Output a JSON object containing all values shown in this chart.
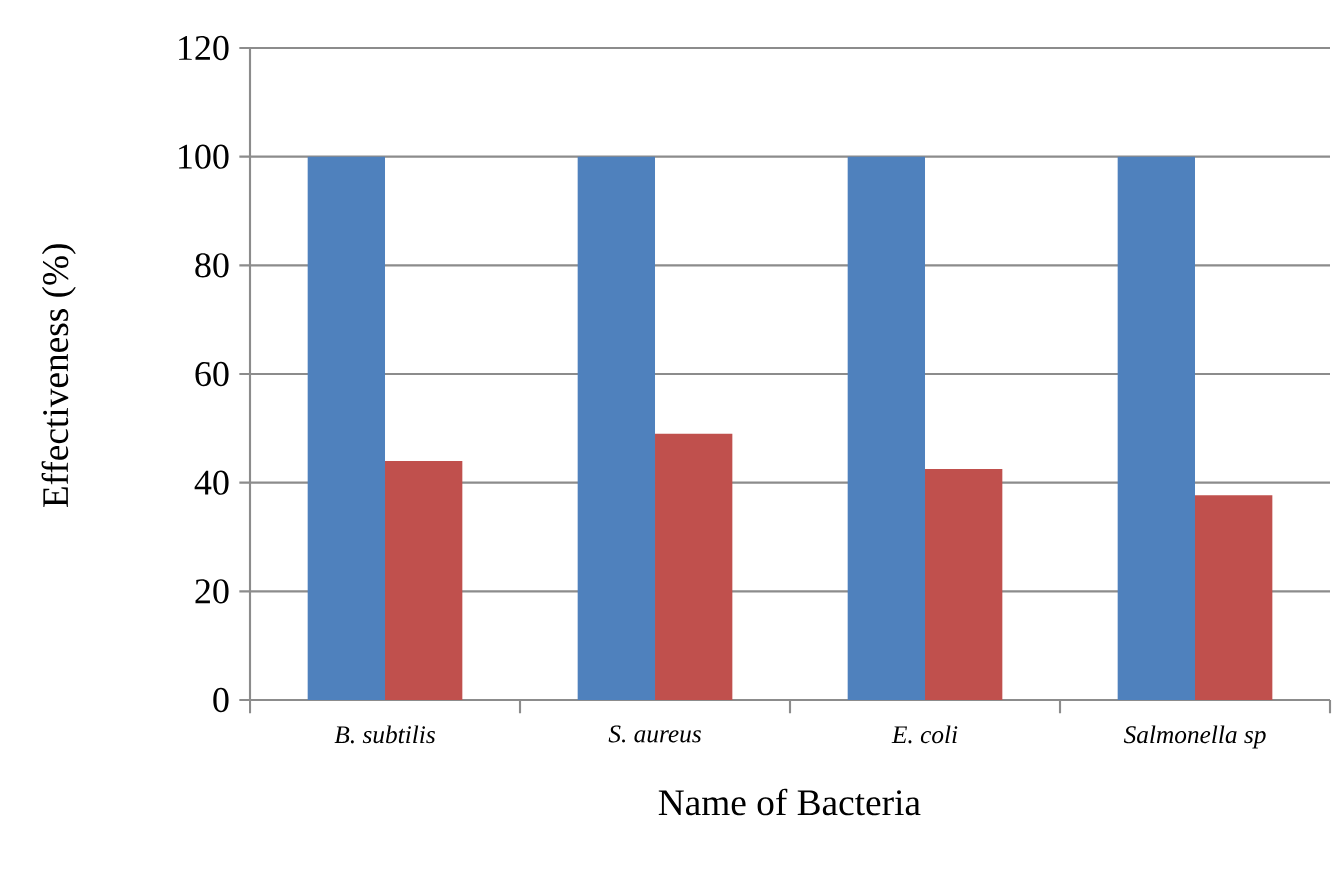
{
  "chart_data": {
    "type": "bar",
    "xlabel": "Name of Bacteria",
    "ylabel": "Effectiveness (%)",
    "categories": [
      "B. subtilis",
      "S. aureus",
      "E. coli",
      "Salmonella sp"
    ],
    "series": [
      {
        "color": "#4f81bd",
        "values": [
          100,
          100,
          100,
          100
        ]
      },
      {
        "color": "#c0504d",
        "values": [
          44,
          49,
          42.5,
          37.7
        ]
      }
    ],
    "ylim": [
      0,
      120
    ],
    "yticks": [
      0,
      20,
      40,
      60,
      80,
      100,
      120
    ],
    "grid": "y"
  }
}
